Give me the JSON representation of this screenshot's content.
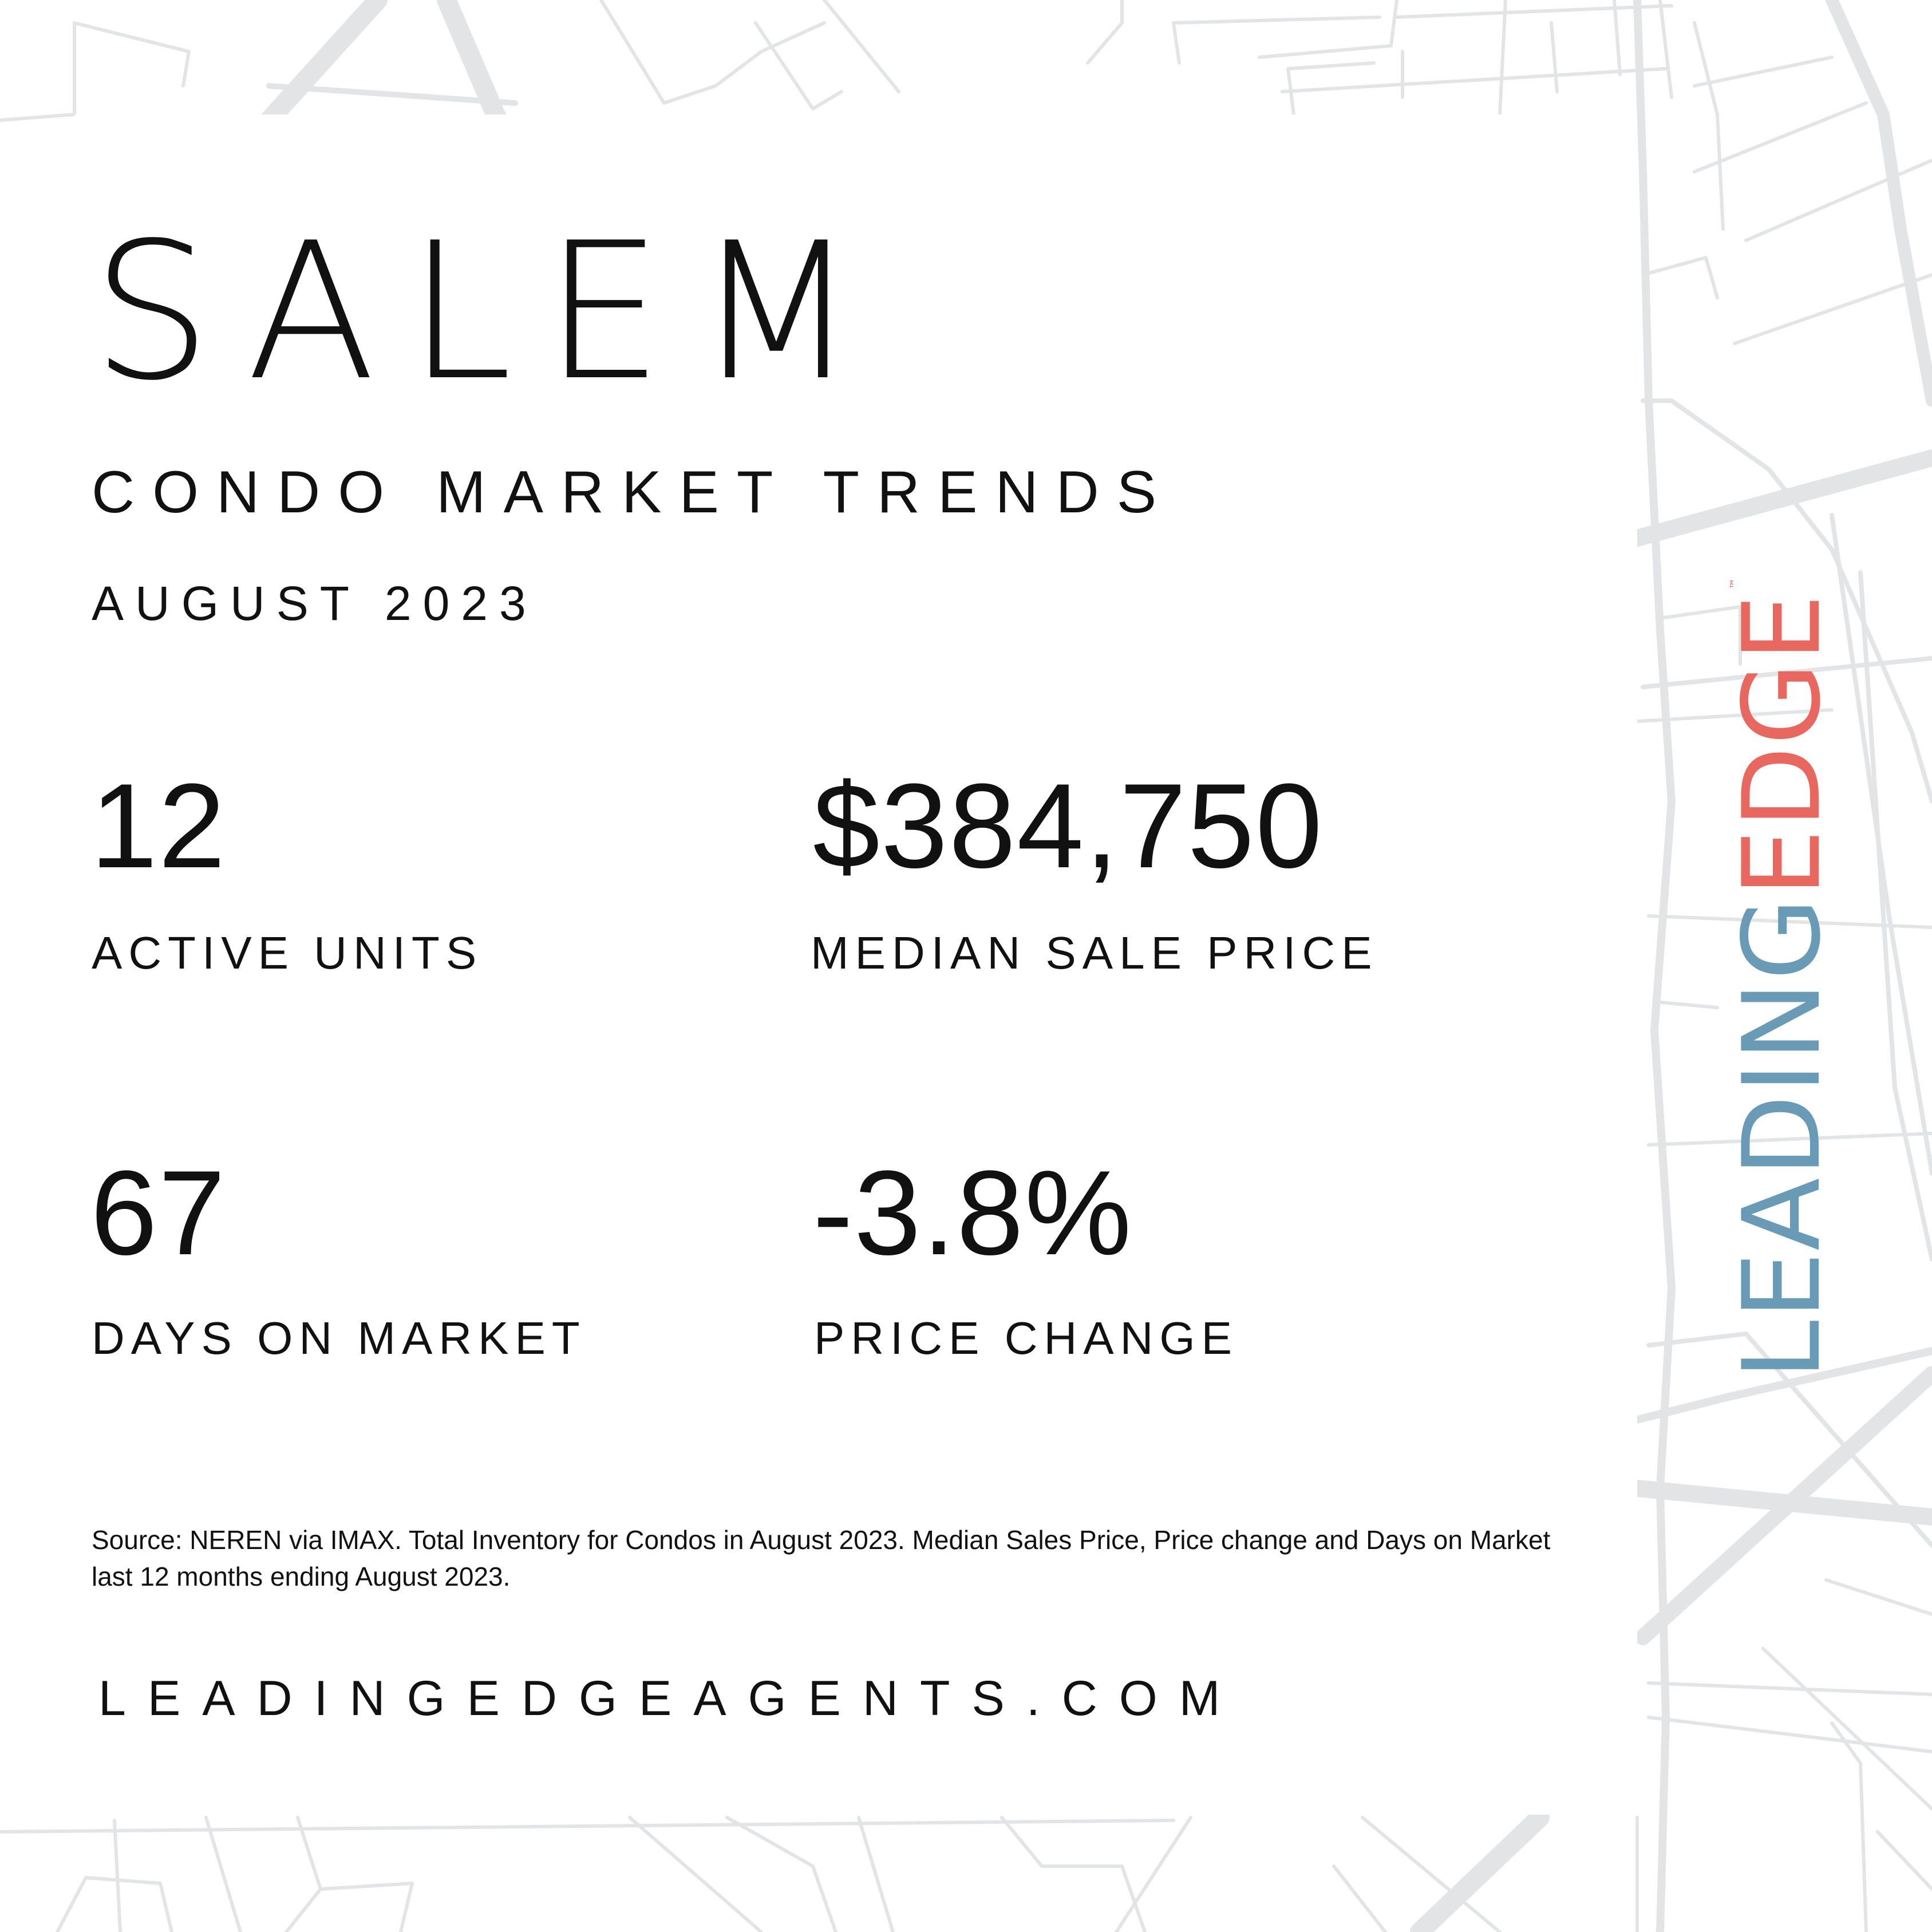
{
  "header": {
    "city": "SALEM",
    "subtitle": "CONDO MARKET TRENDS",
    "period": "AUGUST 2023"
  },
  "stats": [
    {
      "value": "12",
      "label": "ACTIVE UNITS"
    },
    {
      "value": "$384,750",
      "label": "MEDIAN SALE PRICE"
    },
    {
      "value": "67",
      "label": "DAYS ON MARKET"
    },
    {
      "value": "-3.8%",
      "label": "PRICE CHANGE"
    }
  ],
  "footer": {
    "source": "Source: NEREN via IMAX. Total Inventory for Condos in August 2023. Median Sales Price, Price change and Days on Market last 12 months ending August 2023.",
    "website": "LEADINGEDGEAGENTS.COM"
  },
  "logo": {
    "part1": "LEADING",
    "part2": "EDGE",
    "trademark": "™",
    "colors": {
      "leading": "#6a9bb6",
      "edge": "#e86860"
    }
  }
}
